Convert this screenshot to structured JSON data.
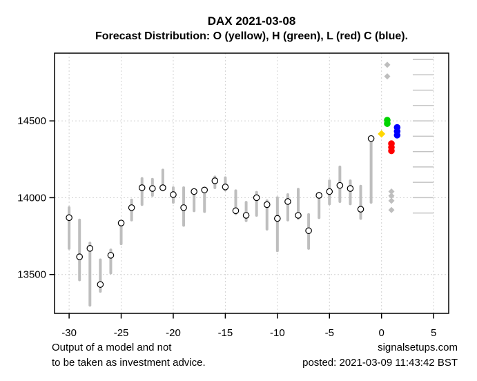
{
  "title": "DAX 2021-03-08",
  "subtitle": "Forecast Distribution: O (yellow), H (green), L (red) C (blue).",
  "footer": {
    "disclaimer_line1": "Output of a model and not",
    "disclaimer_line2": "to be taken as investment advice.",
    "site": "signalsetups.com",
    "posted": "posted: 2021-03-09 11:43:42 BST"
  },
  "colors": {
    "open_forecast": "#FFD700",
    "high_forecast": "#00D400",
    "low_forecast": "#FF0000",
    "close_forecast": "#0000FF",
    "price_bar": "#BEBEBE",
    "outlier_point": "#BEBEBE",
    "grid_line": "#D2D2D2",
    "right_scale_line": "#C3C3C3",
    "close_marker_fill": "#FFFFFF",
    "close_marker_stroke": "#000000",
    "axis": "#000000"
  },
  "chart_data": {
    "type": "bar",
    "subtype": "high-low range bars with close markers plus forecast scatter",
    "title": "DAX 2021-03-08",
    "subtitle": "Forecast Distribution: O (yellow), H (green), L (red) C (blue).",
    "xlabel": "",
    "ylabel": "",
    "grid": true,
    "x_ticks": [
      -30,
      -25,
      -20,
      -15,
      -10,
      -5,
      0,
      5
    ],
    "y_ticks": [
      13500,
      14000,
      14500
    ],
    "xlim": [
      -31.4,
      6.45
    ],
    "ylim": [
      13247,
      14941
    ],
    "bars": [
      {
        "x": -30,
        "high": 13935,
        "low": 13670,
        "close": 13870
      },
      {
        "x": -29,
        "high": 13855,
        "low": 13465,
        "close": 13615
      },
      {
        "x": -28,
        "high": 13705,
        "low": 13300,
        "close": 13670
      },
      {
        "x": -27,
        "high": 13595,
        "low": 13390,
        "close": 13435
      },
      {
        "x": -26,
        "high": 13660,
        "low": 13510,
        "close": 13625
      },
      {
        "x": -25,
        "high": 13840,
        "low": 13700,
        "close": 13835
      },
      {
        "x": -24,
        "high": 13985,
        "low": 13855,
        "close": 13935
      },
      {
        "x": -23,
        "high": 14125,
        "low": 13955,
        "close": 14065
      },
      {
        "x": -22,
        "high": 14120,
        "low": 14015,
        "close": 14060
      },
      {
        "x": -21,
        "high": 14180,
        "low": 14050,
        "close": 14065
      },
      {
        "x": -20,
        "high": 14065,
        "low": 13970,
        "close": 14020
      },
      {
        "x": -19,
        "high": 14065,
        "low": 13820,
        "close": 13935
      },
      {
        "x": -18,
        "high": 14050,
        "low": 13915,
        "close": 14040
      },
      {
        "x": -17,
        "high": 14055,
        "low": 13910,
        "close": 14050
      },
      {
        "x": -16,
        "high": 14135,
        "low": 14065,
        "close": 14110
      },
      {
        "x": -15,
        "high": 14130,
        "low": 14050,
        "close": 14070
      },
      {
        "x": -14,
        "high": 14045,
        "low": 13895,
        "close": 13915
      },
      {
        "x": -13,
        "high": 13970,
        "low": 13850,
        "close": 13885
      },
      {
        "x": -12,
        "high": 14035,
        "low": 13885,
        "close": 14000
      },
      {
        "x": -11,
        "high": 13980,
        "low": 13795,
        "close": 13955
      },
      {
        "x": -10,
        "high": 14000,
        "low": 13655,
        "close": 13865
      },
      {
        "x": -9,
        "high": 14020,
        "low": 13855,
        "close": 13975
      },
      {
        "x": -8,
        "high": 14055,
        "low": 13865,
        "close": 13885
      },
      {
        "x": -7,
        "high": 13890,
        "low": 13670,
        "close": 13785
      },
      {
        "x": -6,
        "high": 14030,
        "low": 13870,
        "close": 14015
      },
      {
        "x": -5,
        "high": 14110,
        "low": 13960,
        "close": 14040
      },
      {
        "x": -4,
        "high": 14200,
        "low": 13975,
        "close": 14080
      },
      {
        "x": -3,
        "high": 14110,
        "low": 13960,
        "close": 14060
      },
      {
        "x": -2,
        "high": 14075,
        "low": 13865,
        "close": 13925
      },
      {
        "x": -1,
        "high": 14395,
        "low": 13970,
        "close": 14385
      }
    ],
    "forecast_points": {
      "open": [
        {
          "x": 0.0,
          "y": 14415
        }
      ],
      "high": [
        {
          "x": 0.55,
          "y": 14505
        },
        {
          "x": 0.55,
          "y": 14482
        }
      ],
      "low": [
        {
          "x": 0.95,
          "y": 14352
        },
        {
          "x": 0.95,
          "y": 14328
        },
        {
          "x": 0.95,
          "y": 14305
        }
      ],
      "close": [
        {
          "x": 1.5,
          "y": 14458
        },
        {
          "x": 1.5,
          "y": 14432
        },
        {
          "x": 1.5,
          "y": 14407
        }
      ]
    },
    "outlier_points": [
      {
        "x": 0.55,
        "y": 14865
      },
      {
        "x": 0.55,
        "y": 14790
      },
      {
        "x": 0.95,
        "y": 14040
      },
      {
        "x": 0.95,
        "y": 14012
      },
      {
        "x": 0.95,
        "y": 13980
      },
      {
        "x": 0.95,
        "y": 13920
      }
    ],
    "right_reference_lines": {
      "values": [
        14900,
        14800,
        14700,
        14600,
        14500,
        14400,
        14300,
        14200,
        14100,
        14000,
        13900
      ],
      "x_from": 3.0,
      "x_to": 5.0
    },
    "legend_position": "none"
  }
}
